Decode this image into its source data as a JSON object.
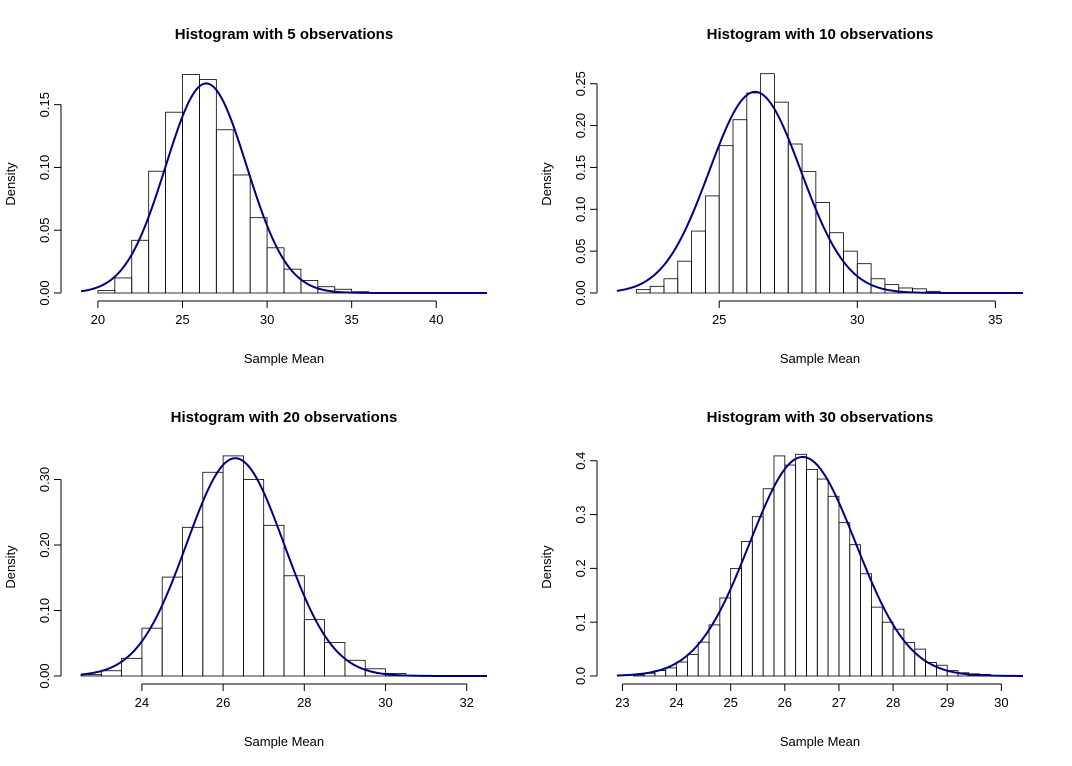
{
  "chart_data": [
    {
      "type": "bar",
      "title": "Histogram with  5  observations",
      "xlabel": "Sample Mean",
      "ylabel": "Density",
      "xlim": [
        19,
        43
      ],
      "ylim": [
        0,
        0.18
      ],
      "xticks": [
        20,
        25,
        30,
        35,
        40
      ],
      "xtick_labels": [
        "20",
        "25",
        "30",
        "35",
        "40"
      ],
      "yticks": [
        0,
        0.05,
        0.1,
        0.15
      ],
      "ytick_labels": [
        "0.00",
        "0.05",
        "0.10",
        "0.15"
      ],
      "bins": [
        {
          "x0": 20,
          "x1": 21,
          "density": 0.002
        },
        {
          "x0": 21,
          "x1": 22,
          "density": 0.012
        },
        {
          "x0": 22,
          "x1": 23,
          "density": 0.042
        },
        {
          "x0": 23,
          "x1": 24,
          "density": 0.097
        },
        {
          "x0": 24,
          "x1": 25,
          "density": 0.144
        },
        {
          "x0": 25,
          "x1": 26,
          "density": 0.174
        },
        {
          "x0": 26,
          "x1": 27,
          "density": 0.17
        },
        {
          "x0": 27,
          "x1": 28,
          "density": 0.13
        },
        {
          "x0": 28,
          "x1": 29,
          "density": 0.094
        },
        {
          "x0": 29,
          "x1": 30,
          "density": 0.06
        },
        {
          "x0": 30,
          "x1": 31,
          "density": 0.036
        },
        {
          "x0": 31,
          "x1": 32,
          "density": 0.019
        },
        {
          "x0": 32,
          "x1": 33,
          "density": 0.01
        },
        {
          "x0": 33,
          "x1": 34,
          "density": 0.005
        },
        {
          "x0": 34,
          "x1": 35,
          "density": 0.003
        },
        {
          "x0": 35,
          "x1": 36,
          "density": 0.001
        }
      ],
      "curve": {
        "type": "normal",
        "mean": 26.4,
        "sd": 2.39,
        "color": "#00007f"
      }
    },
    {
      "type": "bar",
      "title": "Histogram with  10  observations",
      "xlabel": "Sample Mean",
      "ylabel": "Density",
      "xlim": [
        21.3,
        36.0
      ],
      "ylim": [
        0,
        0.27
      ],
      "xticks": [
        25,
        30,
        35
      ],
      "xtick_labels": [
        "25",
        "30",
        "35"
      ],
      "yticks": [
        0,
        0.05,
        0.1,
        0.15,
        0.2,
        0.25
      ],
      "ytick_labels": [
        "0.00",
        "0.05",
        "0.10",
        "0.15",
        "0.20",
        "0.25"
      ],
      "bins": [
        {
          "x0": 22.0,
          "x1": 22.5,
          "density": 0.004
        },
        {
          "x0": 22.5,
          "x1": 23.0,
          "density": 0.008
        },
        {
          "x0": 23.0,
          "x1": 23.5,
          "density": 0.017
        },
        {
          "x0": 23.5,
          "x1": 24.0,
          "density": 0.038
        },
        {
          "x0": 24.0,
          "x1": 24.5,
          "density": 0.074
        },
        {
          "x0": 24.5,
          "x1": 25.0,
          "density": 0.116
        },
        {
          "x0": 25.0,
          "x1": 25.5,
          "density": 0.176
        },
        {
          "x0": 25.5,
          "x1": 26.0,
          "density": 0.207
        },
        {
          "x0": 26.0,
          "x1": 26.5,
          "density": 0.239
        },
        {
          "x0": 26.5,
          "x1": 27.0,
          "density": 0.262
        },
        {
          "x0": 27.0,
          "x1": 27.5,
          "density": 0.228
        },
        {
          "x0": 27.5,
          "x1": 28.0,
          "density": 0.178
        },
        {
          "x0": 28.0,
          "x1": 28.5,
          "density": 0.145
        },
        {
          "x0": 28.5,
          "x1": 29.0,
          "density": 0.108
        },
        {
          "x0": 29.0,
          "x1": 29.5,
          "density": 0.072
        },
        {
          "x0": 29.5,
          "x1": 30.0,
          "density": 0.05
        },
        {
          "x0": 30.0,
          "x1": 30.5,
          "density": 0.035
        },
        {
          "x0": 30.5,
          "x1": 31.0,
          "density": 0.017
        },
        {
          "x0": 31.0,
          "x1": 31.5,
          "density": 0.01
        },
        {
          "x0": 31.5,
          "x1": 32.0,
          "density": 0.006
        },
        {
          "x0": 32.0,
          "x1": 32.5,
          "density": 0.005
        },
        {
          "x0": 32.5,
          "x1": 33.0,
          "density": 0.002
        }
      ],
      "curve": {
        "type": "normal",
        "mean": 26.3,
        "sd": 1.66,
        "color": "#00007f"
      }
    },
    {
      "type": "bar",
      "title": "Histogram with  20  observations",
      "xlabel": "Sample Mean",
      "ylabel": "Density",
      "xlim": [
        22.5,
        32.5
      ],
      "ylim": [
        0,
        0.345
      ],
      "xticks": [
        24,
        26,
        28,
        30,
        32
      ],
      "xtick_labels": [
        "24",
        "26",
        "28",
        "30",
        "32"
      ],
      "yticks": [
        0,
        0.1,
        0.2,
        0.3
      ],
      "ytick_labels": [
        "0.00",
        "0.10",
        "0.20",
        "0.30"
      ],
      "bins": [
        {
          "x0": 22.5,
          "x1": 23.0,
          "density": 0.002
        },
        {
          "x0": 23.0,
          "x1": 23.5,
          "density": 0.008
        },
        {
          "x0": 23.5,
          "x1": 24.0,
          "density": 0.027
        },
        {
          "x0": 24.0,
          "x1": 24.5,
          "density": 0.073
        },
        {
          "x0": 24.5,
          "x1": 25.0,
          "density": 0.151
        },
        {
          "x0": 25.0,
          "x1": 25.5,
          "density": 0.227
        },
        {
          "x0": 25.5,
          "x1": 26.0,
          "density": 0.311
        },
        {
          "x0": 26.0,
          "x1": 26.5,
          "density": 0.336
        },
        {
          "x0": 26.5,
          "x1": 27.0,
          "density": 0.3
        },
        {
          "x0": 27.0,
          "x1": 27.5,
          "density": 0.23
        },
        {
          "x0": 27.5,
          "x1": 28.0,
          "density": 0.153
        },
        {
          "x0": 28.0,
          "x1": 28.5,
          "density": 0.086
        },
        {
          "x0": 28.5,
          "x1": 29.0,
          "density": 0.051
        },
        {
          "x0": 29.0,
          "x1": 29.5,
          "density": 0.024
        },
        {
          "x0": 29.5,
          "x1": 30.0,
          "density": 0.011
        },
        {
          "x0": 30.0,
          "x1": 30.5,
          "density": 0.004
        },
        {
          "x0": 30.5,
          "x1": 31.0,
          "density": 0.001
        }
      ],
      "curve": {
        "type": "normal",
        "mean": 26.3,
        "sd": 1.2,
        "color": "#00007f"
      }
    },
    {
      "type": "bar",
      "title": "Histogram with  30  observations",
      "xlabel": "Sample Mean",
      "ylabel": "Density",
      "xlim": [
        22.9,
        30.4
      ],
      "ylim": [
        0,
        0.42
      ],
      "xticks": [
        23,
        24,
        25,
        26,
        27,
        28,
        29,
        30
      ],
      "xtick_labels": [
        "23",
        "24",
        "25",
        "26",
        "27",
        "28",
        "29",
        "30"
      ],
      "yticks": [
        0,
        0.1,
        0.2,
        0.3,
        0.4
      ],
      "ytick_labels": [
        "0.0",
        "0.1",
        "0.2",
        "0.3",
        "0.4"
      ],
      "bins": [
        {
          "x0": 23.2,
          "x1": 23.4,
          "density": 0.002
        },
        {
          "x0": 23.4,
          "x1": 23.6,
          "density": 0.005
        },
        {
          "x0": 23.6,
          "x1": 23.8,
          "density": 0.01
        },
        {
          "x0": 23.8,
          "x1": 24.0,
          "density": 0.015
        },
        {
          "x0": 24.0,
          "x1": 24.2,
          "density": 0.026
        },
        {
          "x0": 24.2,
          "x1": 24.4,
          "density": 0.04
        },
        {
          "x0": 24.4,
          "x1": 24.6,
          "density": 0.063
        },
        {
          "x0": 24.6,
          "x1": 24.8,
          "density": 0.095
        },
        {
          "x0": 24.8,
          "x1": 25.0,
          "density": 0.145
        },
        {
          "x0": 25.0,
          "x1": 25.2,
          "density": 0.2
        },
        {
          "x0": 25.2,
          "x1": 25.4,
          "density": 0.25
        },
        {
          "x0": 25.4,
          "x1": 25.6,
          "density": 0.296
        },
        {
          "x0": 25.6,
          "x1": 25.8,
          "density": 0.348
        },
        {
          "x0": 25.8,
          "x1": 26.0,
          "density": 0.409
        },
        {
          "x0": 26.0,
          "x1": 26.2,
          "density": 0.392
        },
        {
          "x0": 26.2,
          "x1": 26.4,
          "density": 0.412
        },
        {
          "x0": 26.4,
          "x1": 26.6,
          "density": 0.384
        },
        {
          "x0": 26.6,
          "x1": 26.8,
          "density": 0.366
        },
        {
          "x0": 26.8,
          "x1": 27.0,
          "density": 0.334
        },
        {
          "x0": 27.0,
          "x1": 27.2,
          "density": 0.285
        },
        {
          "x0": 27.2,
          "x1": 27.4,
          "density": 0.244
        },
        {
          "x0": 27.4,
          "x1": 27.6,
          "density": 0.19
        },
        {
          "x0": 27.6,
          "x1": 27.8,
          "density": 0.128
        },
        {
          "x0": 27.8,
          "x1": 28.0,
          "density": 0.1
        },
        {
          "x0": 28.0,
          "x1": 28.2,
          "density": 0.087
        },
        {
          "x0": 28.2,
          "x1": 28.4,
          "density": 0.062
        },
        {
          "x0": 28.4,
          "x1": 28.6,
          "density": 0.05
        },
        {
          "x0": 28.6,
          "x1": 28.8,
          "density": 0.025
        },
        {
          "x0": 28.8,
          "x1": 29.0,
          "density": 0.02
        },
        {
          "x0": 29.0,
          "x1": 29.2,
          "density": 0.01
        },
        {
          "x0": 29.2,
          "x1": 29.4,
          "density": 0.006
        },
        {
          "x0": 29.4,
          "x1": 29.6,
          "density": 0.004
        },
        {
          "x0": 29.6,
          "x1": 29.8,
          "density": 0.003
        }
      ],
      "curve": {
        "type": "normal",
        "mean": 26.33,
        "sd": 0.98,
        "color": "#00007f"
      }
    }
  ]
}
